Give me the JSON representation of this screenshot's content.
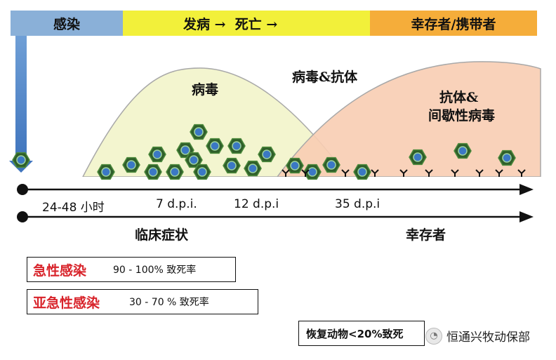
{
  "phases": {
    "infection": "感染",
    "disease_death": "发病 →  死亡 →",
    "survivor_carrier": "幸存者/携带者"
  },
  "curves": {
    "virus": "病毒",
    "virus_antibody": "病毒&抗体",
    "antibody_line1": "抗体&",
    "antibody_line2": "间歇性病毒"
  },
  "timeline": {
    "ticks": [
      "24-48 小时",
      "7 d.p.i.",
      "12 d.p.i",
      "35 d.p.i"
    ],
    "clinical": "临床症状",
    "survivor": "幸存者"
  },
  "boxes": [
    {
      "label": "急性感染",
      "rate": "90 - 100% 致死率"
    },
    {
      "label": "亚急性感染",
      "rate": "30 - 70 % 致死率"
    }
  ],
  "recovery": "恢复动物<20%致死",
  "watermark": "恒通兴牧动保部",
  "colors": {
    "virus_curve_fill": "#f3f5cf",
    "antibody_curve_fill": "#f8cdb3",
    "virus_hex": "#2f5f2a",
    "virus_core": "#3b78c4",
    "accent_red": "#d8232a"
  }
}
